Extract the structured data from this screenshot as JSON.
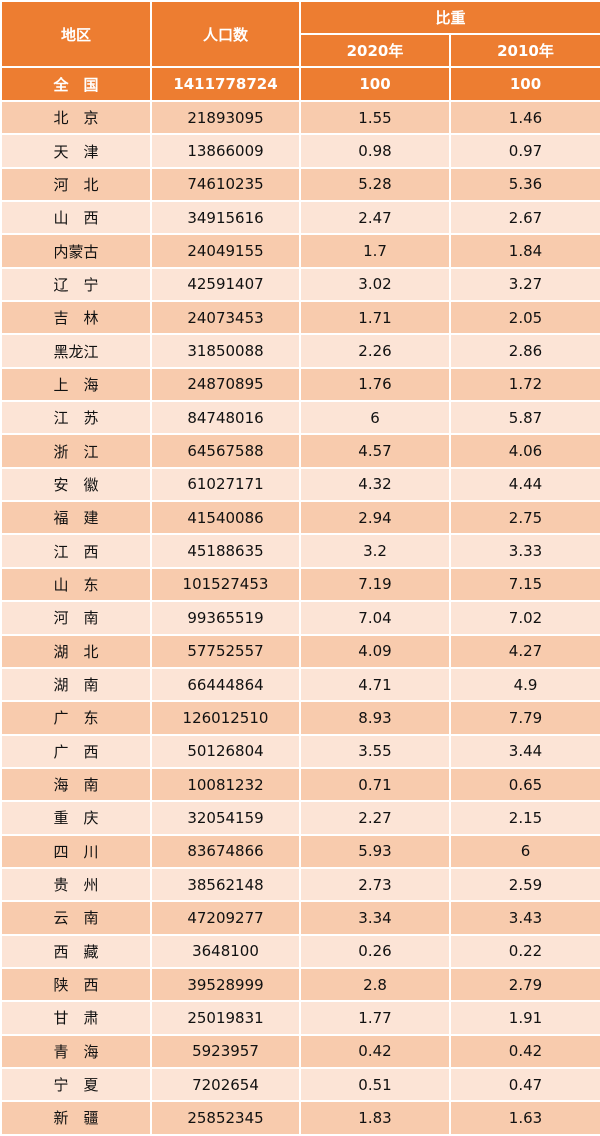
{
  "header": {
    "region": "地区",
    "population": "人口数",
    "share": "比重",
    "year2020": "2020年",
    "year2010": "2010年"
  },
  "total": {
    "region": "全　国",
    "population": "1411778724",
    "share2020": "100",
    "share2010": "100"
  },
  "colors": {
    "header": "#ED7D31",
    "row_dark": "#F8CBAD",
    "row_light": "#FCE4D6"
  },
  "rows": [
    {
      "region": "北　京",
      "population": "21893095",
      "share2020": "1.55",
      "share2010": "1.46"
    },
    {
      "region": "天　津",
      "population": "13866009",
      "share2020": "0.98",
      "share2010": "0.97"
    },
    {
      "region": "河　北",
      "population": "74610235",
      "share2020": "5.28",
      "share2010": "5.36"
    },
    {
      "region": "山　西",
      "population": "34915616",
      "share2020": "2.47",
      "share2010": "2.67"
    },
    {
      "region": "内蒙古",
      "population": "24049155",
      "share2020": "1.7",
      "share2010": "1.84"
    },
    {
      "region": "辽　宁",
      "population": "42591407",
      "share2020": "3.02",
      "share2010": "3.27"
    },
    {
      "region": "吉　林",
      "population": "24073453",
      "share2020": "1.71",
      "share2010": "2.05"
    },
    {
      "region": "黑龙江",
      "population": "31850088",
      "share2020": "2.26",
      "share2010": "2.86"
    },
    {
      "region": "上　海",
      "population": "24870895",
      "share2020": "1.76",
      "share2010": "1.72"
    },
    {
      "region": "江　苏",
      "population": "84748016",
      "share2020": "6",
      "share2010": "5.87"
    },
    {
      "region": "浙　江",
      "population": "64567588",
      "share2020": "4.57",
      "share2010": "4.06"
    },
    {
      "region": "安　徽",
      "population": "61027171",
      "share2020": "4.32",
      "share2010": "4.44"
    },
    {
      "region": "福　建",
      "population": "41540086",
      "share2020": "2.94",
      "share2010": "2.75"
    },
    {
      "region": "江　西",
      "population": "45188635",
      "share2020": "3.2",
      "share2010": "3.33"
    },
    {
      "region": "山　东",
      "population": "101527453",
      "share2020": "7.19",
      "share2010": "7.15"
    },
    {
      "region": "河　南",
      "population": "99365519",
      "share2020": "7.04",
      "share2010": "7.02"
    },
    {
      "region": "湖　北",
      "population": "57752557",
      "share2020": "4.09",
      "share2010": "4.27"
    },
    {
      "region": "湖　南",
      "population": "66444864",
      "share2020": "4.71",
      "share2010": "4.9"
    },
    {
      "region": "广　东",
      "population": "126012510",
      "share2020": "8.93",
      "share2010": "7.79"
    },
    {
      "region": "广　西",
      "population": "50126804",
      "share2020": "3.55",
      "share2010": "3.44"
    },
    {
      "region": "海　南",
      "population": "10081232",
      "share2020": "0.71",
      "share2010": "0.65"
    },
    {
      "region": "重　庆",
      "population": "32054159",
      "share2020": "2.27",
      "share2010": "2.15"
    },
    {
      "region": "四　川",
      "population": "83674866",
      "share2020": "5.93",
      "share2010": "6"
    },
    {
      "region": "贵　州",
      "population": "38562148",
      "share2020": "2.73",
      "share2010": "2.59"
    },
    {
      "region": "云　南",
      "population": "47209277",
      "share2020": "3.34",
      "share2010": "3.43"
    },
    {
      "region": "西　藏",
      "population": "3648100",
      "share2020": "0.26",
      "share2010": "0.22"
    },
    {
      "region": "陕　西",
      "population": "39528999",
      "share2020": "2.8",
      "share2010": "2.79"
    },
    {
      "region": "甘　肃",
      "population": "25019831",
      "share2020": "1.77",
      "share2010": "1.91"
    },
    {
      "region": "青　海",
      "population": "5923957",
      "share2020": "0.42",
      "share2010": "0.42"
    },
    {
      "region": "宁　夏",
      "population": "7202654",
      "share2020": "0.51",
      "share2010": "0.47"
    },
    {
      "region": "新　疆",
      "population": "25852345",
      "share2020": "1.83",
      "share2010": "1.63"
    }
  ]
}
